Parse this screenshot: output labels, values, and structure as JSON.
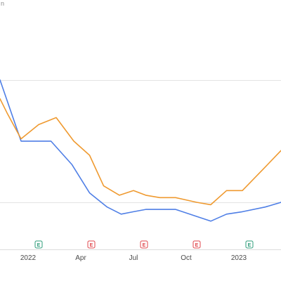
{
  "chart_data": {
    "type": "line",
    "top_label_fragment": "n",
    "x_tick_labels": [
      {
        "label": "2022",
        "x": 2
      },
      {
        "label": "Apr",
        "x": 5
      },
      {
        "label": "Jul",
        "x": 8
      },
      {
        "label": "Oct",
        "x": 11
      },
      {
        "label": "2023",
        "x": 14
      }
    ],
    "xlim": [
      0.4,
      16.4
    ],
    "ylim": [
      0,
      100
    ],
    "gridlines": [
      20,
      72
    ],
    "grid": "horizontal",
    "series": [
      {
        "color": "#4f7fe6",
        "x": [
          0.4,
          1.6,
          2.5,
          3.3,
          4.5,
          5.5,
          6.5,
          7.3,
          8.0,
          8.7,
          9.5,
          10.4,
          11.6,
          12.4,
          13.3,
          14.2,
          15.5,
          16.4
        ],
        "y": [
          72,
          46,
          46,
          46,
          36,
          24,
          18,
          15,
          16,
          17,
          17,
          17,
          14,
          12,
          15,
          16,
          18,
          20
        ]
      },
      {
        "color": "#ef9a30",
        "x": [
          0.4,
          0.8,
          1.6,
          2.6,
          3.6,
          4.6,
          5.5,
          6.3,
          7.2,
          8.0,
          8.7,
          9.5,
          10.4,
          11.6,
          12.4,
          13.3,
          14.2,
          15.5,
          16.4
        ],
        "y": [
          64,
          58,
          47,
          53,
          56,
          46,
          40,
          27,
          23,
          25,
          23,
          22,
          22,
          20,
          19,
          25,
          25,
          35,
          42
        ]
      }
    ],
    "event_markers": [
      {
        "label": "E",
        "x": 2.6,
        "kind": "earnings-positive",
        "color": "#2e9c7a"
      },
      {
        "label": "E",
        "x": 5.6,
        "kind": "earnings-negative",
        "color": "#e0474c"
      },
      {
        "label": "E",
        "x": 8.6,
        "kind": "earnings-negative",
        "color": "#e0474c"
      },
      {
        "label": "E",
        "x": 11.6,
        "kind": "earnings-negative",
        "color": "#e0474c"
      },
      {
        "label": "E",
        "x": 14.6,
        "kind": "earnings-positive",
        "color": "#2e9c7a"
      }
    ]
  }
}
